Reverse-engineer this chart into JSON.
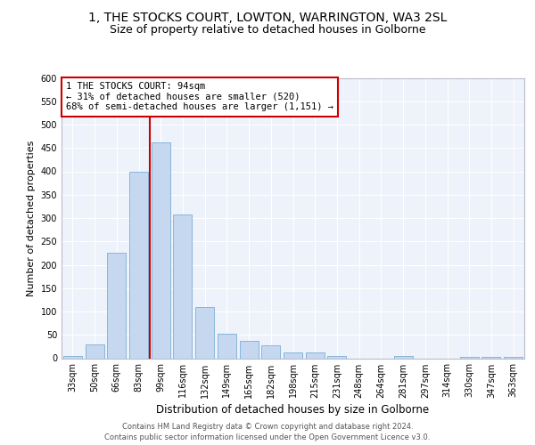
{
  "title": "1, THE STOCKS COURT, LOWTON, WARRINGTON, WA3 2SL",
  "subtitle": "Size of property relative to detached houses in Golborne",
  "xlabel": "Distribution of detached houses by size in Golborne",
  "ylabel": "Number of detached properties",
  "categories": [
    "33sqm",
    "50sqm",
    "66sqm",
    "83sqm",
    "99sqm",
    "116sqm",
    "132sqm",
    "149sqm",
    "165sqm",
    "182sqm",
    "198sqm",
    "215sqm",
    "231sqm",
    "248sqm",
    "264sqm",
    "281sqm",
    "297sqm",
    "314sqm",
    "330sqm",
    "347sqm",
    "363sqm"
  ],
  "values": [
    5,
    30,
    225,
    400,
    462,
    308,
    110,
    53,
    38,
    27,
    13,
    12,
    5,
    0,
    0,
    5,
    0,
    0,
    3,
    3,
    3
  ],
  "bar_color": "#c5d8f0",
  "bar_edge_color": "#7bafd4",
  "vline_x_index": 4,
  "vline_color": "#cc0000",
  "annotation_text": "1 THE STOCKS COURT: 94sqm\n← 31% of detached houses are smaller (520)\n68% of semi-detached houses are larger (1,151) →",
  "annotation_box_edge_color": "#cc0000",
  "ylim": [
    0,
    600
  ],
  "yticks": [
    0,
    50,
    100,
    150,
    200,
    250,
    300,
    350,
    400,
    450,
    500,
    550,
    600
  ],
  "footer_line1": "Contains HM Land Registry data © Crown copyright and database right 2024.",
  "footer_line2": "Contains public sector information licensed under the Open Government Licence v3.0.",
  "background_color": "#eef2fa",
  "grid_color": "#ffffff",
  "title_fontsize": 10,
  "subtitle_fontsize": 9,
  "tick_fontsize": 7,
  "ylabel_fontsize": 8,
  "xlabel_fontsize": 8.5,
  "footer_fontsize": 6,
  "figsize": [
    6.0,
    5.0
  ],
  "dpi": 100
}
